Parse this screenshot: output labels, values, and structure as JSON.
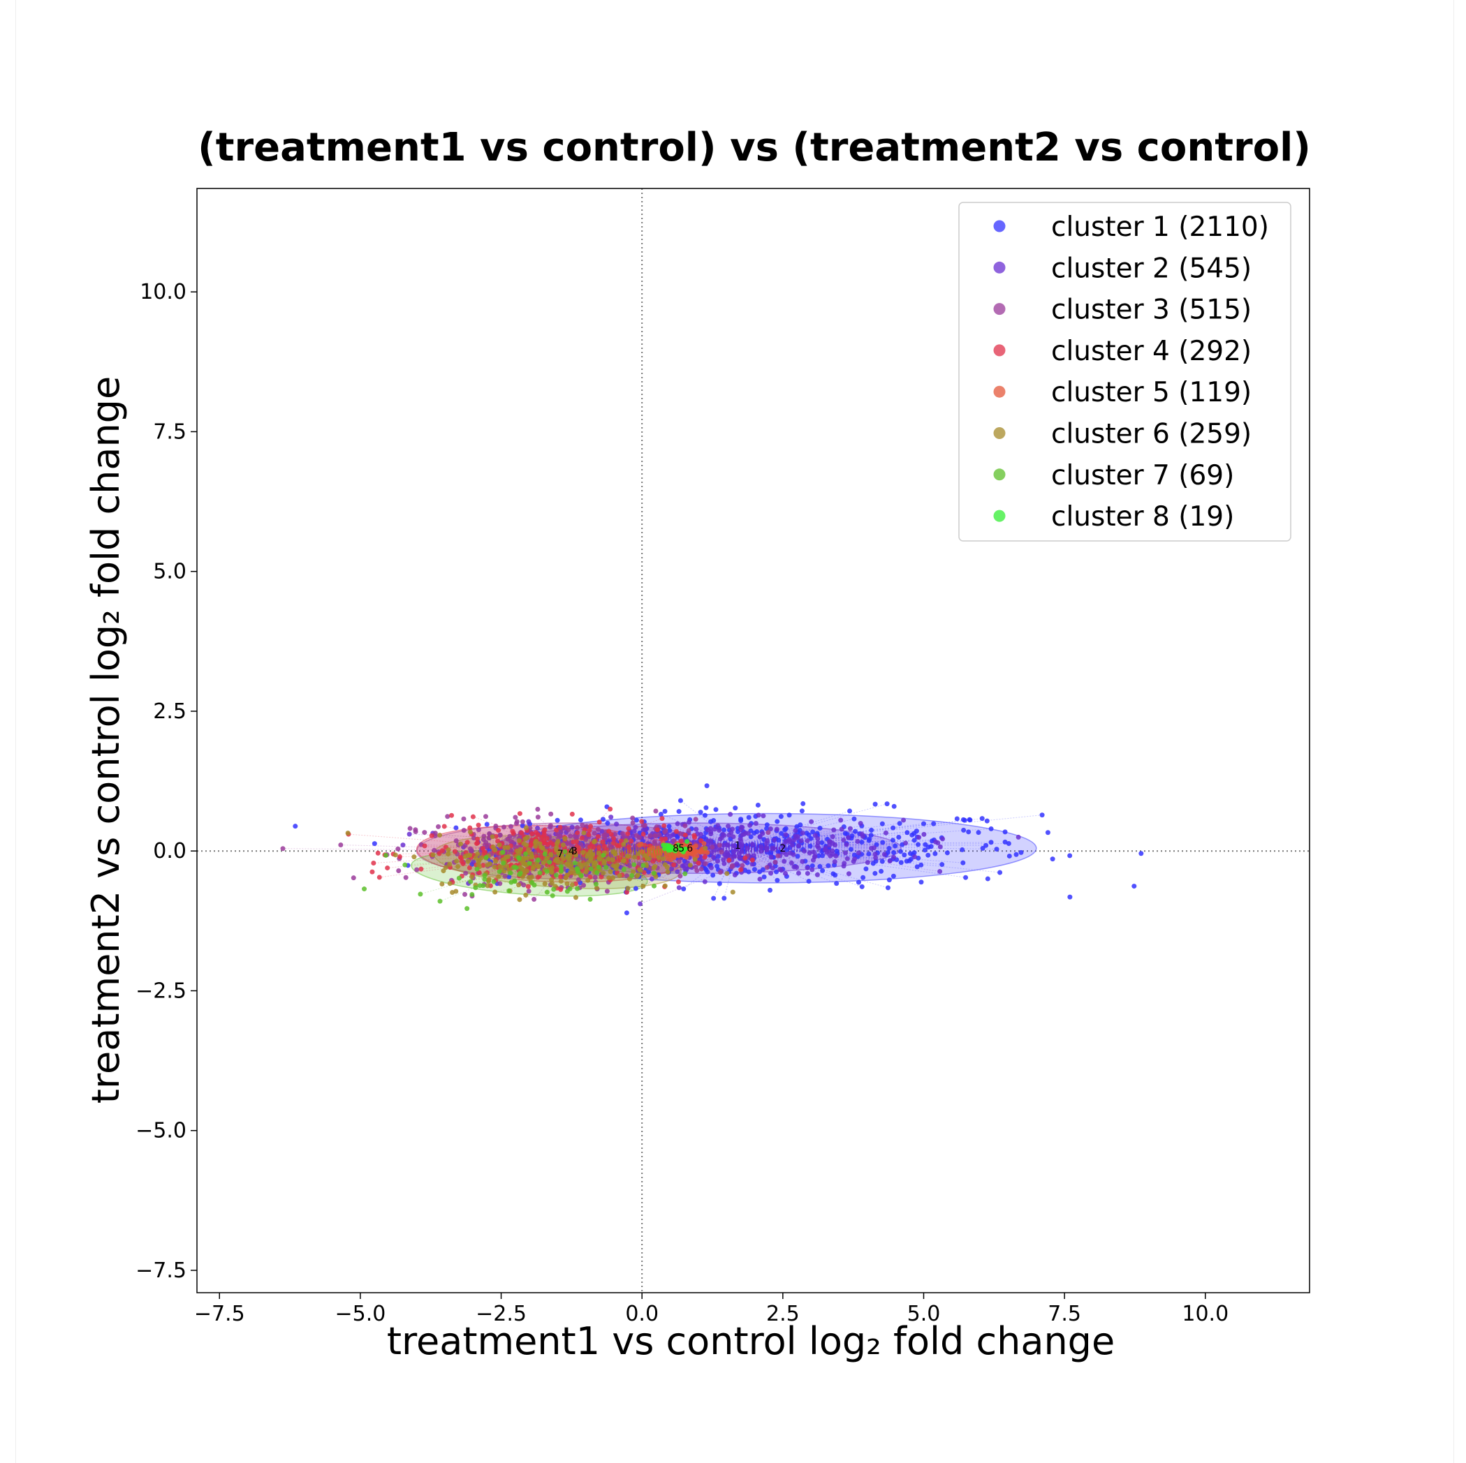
{
  "chart_data": {
    "type": "scatter",
    "title": "(treatment1 vs control) vs (treatment2 vs control)",
    "xlabel": "treatment1 vs control log₂ fold change",
    "ylabel": "treatment2 vs control log₂ fold change",
    "xlim": [
      -7.9,
      11.85
    ],
    "ylim": [
      -7.9,
      11.85
    ],
    "xticks": [
      -7.5,
      -5.0,
      -2.5,
      0.0,
      2.5,
      5.0,
      7.5,
      10.0
    ],
    "yticks": [
      -7.5,
      -5.0,
      -2.5,
      0.0,
      2.5,
      5.0,
      7.5,
      10.0
    ],
    "xtick_labels": [
      "−7.5",
      "−5.0",
      "−2.5",
      "0.0",
      "2.5",
      "5.0",
      "7.5",
      "10.0"
    ],
    "ytick_labels": [
      "−7.5",
      "−5.0",
      "−2.5",
      "0.0",
      "2.5",
      "5.0",
      "7.5",
      "10.0"
    ],
    "reference_lines": {
      "x": 0.0,
      "y": 0.0,
      "style": "dotted"
    },
    "grid": false,
    "legend_position": "top-right",
    "series": [
      {
        "name": "cluster 1 (2110)",
        "label": "1",
        "color": "#3333ff",
        "count": 2110,
        "centroid": [
          1.7,
          0.1
        ],
        "ellipse": {
          "center": [
            2.2,
            0.05
          ],
          "rx": 4.8,
          "ry": 0.62,
          "angle": 0
        }
      },
      {
        "name": "cluster 2 (545)",
        "label": "2",
        "color": "#6a2fd1",
        "count": 545,
        "centroid": [
          2.5,
          0.05
        ],
        "ellipse": {
          "center": [
            1.0,
            0.05
          ],
          "rx": 3.6,
          "ry": 0.45,
          "angle": 0
        }
      },
      {
        "name": "cluster 3 (515)",
        "label": "3",
        "color": "#9a3a9a",
        "count": 515,
        "centroid": [
          -1.2,
          0.0
        ],
        "ellipse": {
          "center": [
            -1.3,
            0.0
          ],
          "rx": 2.7,
          "ry": 0.5,
          "angle": 0
        }
      },
      {
        "name": "cluster 4 (292)",
        "label": "4",
        "color": "#e0304a",
        "count": 292,
        "centroid": [
          -1.25,
          0.0
        ],
        "ellipse": {
          "center": [
            -1.6,
            -0.05
          ],
          "rx": 2.4,
          "ry": 0.5,
          "angle": 2
        }
      },
      {
        "name": "cluster 5 (119)",
        "label": "5",
        "color": "#e4573a",
        "count": 119,
        "centroid": [
          0.7,
          0.05
        ],
        "ellipse": {
          "center": [
            0.6,
            0.0
          ],
          "rx": 0.5,
          "ry": 0.12,
          "angle": 0
        }
      },
      {
        "name": "cluster 6 (259)",
        "label": "6",
        "color": "#a68a2a",
        "count": 259,
        "centroid": [
          0.85,
          0.05
        ],
        "ellipse": {
          "center": [
            -1.5,
            -0.2
          ],
          "rx": 2.2,
          "ry": 0.45,
          "angle": 4
        }
      },
      {
        "name": "cluster 7 (69)",
        "label": "7",
        "color": "#5cbf2a",
        "count": 69,
        "centroid": [
          -1.45,
          -0.05
        ],
        "ellipse": {
          "center": [
            -2.0,
            -0.4
          ],
          "rx": 2.1,
          "ry": 0.38,
          "angle": 4
        }
      },
      {
        "name": "cluster 8 (19)",
        "label": "8",
        "color": "#33ee33",
        "count": 19,
        "centroid": [
          0.6,
          0.05
        ],
        "ellipse": {
          "center": [
            0.6,
            0.05
          ],
          "rx": 0.25,
          "ry": 0.08,
          "angle": 0
        }
      }
    ]
  }
}
